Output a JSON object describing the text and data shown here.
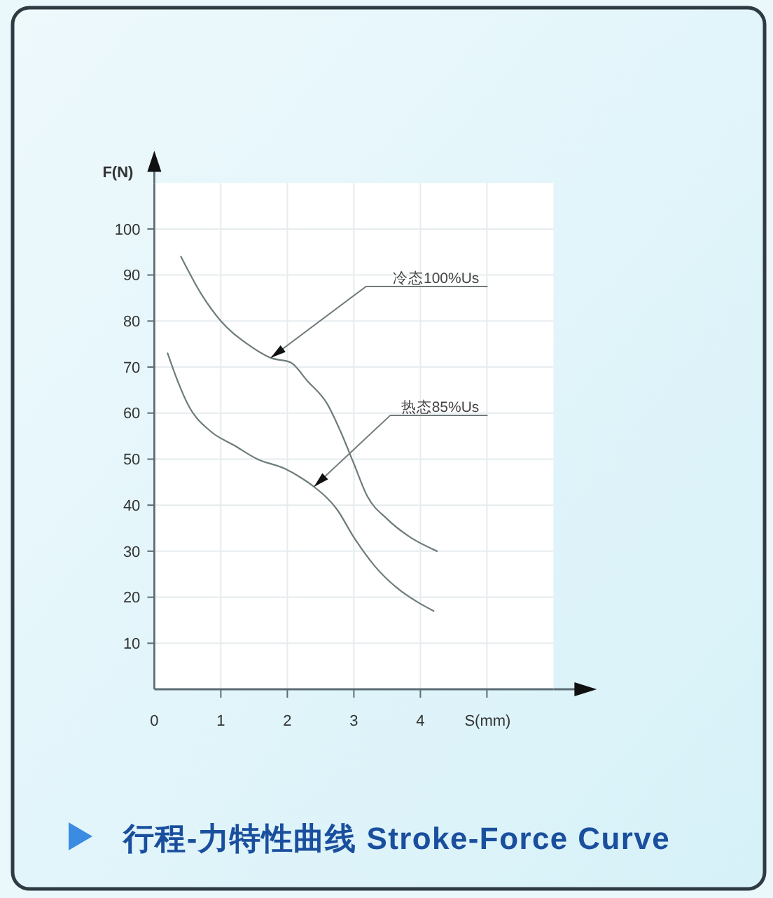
{
  "chart_data": {
    "type": "line",
    "title": "行程-力特性曲线 Stroke-Force Curve",
    "xlabel": "S(mm)",
    "ylabel": "F(N)",
    "xlim": [
      0,
      6
    ],
    "ylim": [
      0,
      110
    ],
    "xticks": [
      0,
      1,
      2,
      3,
      4,
      {
        "value": 5,
        "label": null
      }
    ],
    "yticks": [
      10,
      20,
      30,
      40,
      50,
      60,
      70,
      80,
      90,
      100
    ],
    "grid": true,
    "series": [
      {
        "color": "#6f7c7c",
        "x": [
          0.4,
          0.7,
          1.0,
          1.4,
          1.75,
          2.05,
          2.3,
          2.6,
          2.8,
          3.0,
          3.2,
          3.5,
          3.85,
          4.25
        ],
        "values": [
          94,
          86,
          80,
          75,
          72,
          71,
          67,
          62,
          56,
          49,
          42,
          37,
          33,
          30
        ]
      },
      {
        "color": "#6f7c7c",
        "x": [
          0.2,
          0.35,
          0.5,
          0.85,
          1.2,
          1.55,
          1.95,
          2.2,
          2.4,
          2.75,
          3.0,
          3.3,
          3.65,
          3.95,
          4.2
        ],
        "values": [
          73,
          67,
          62,
          56,
          53,
          50,
          48,
          46,
          44,
          39,
          33,
          27,
          22,
          19,
          17
        ]
      }
    ],
    "annotations": [
      {
        "text": "冷态100%Us",
        "x": 1.75,
        "y": 72
      },
      {
        "text": "热态85%Us",
        "x": 2.4,
        "y": 44
      }
    ]
  }
}
